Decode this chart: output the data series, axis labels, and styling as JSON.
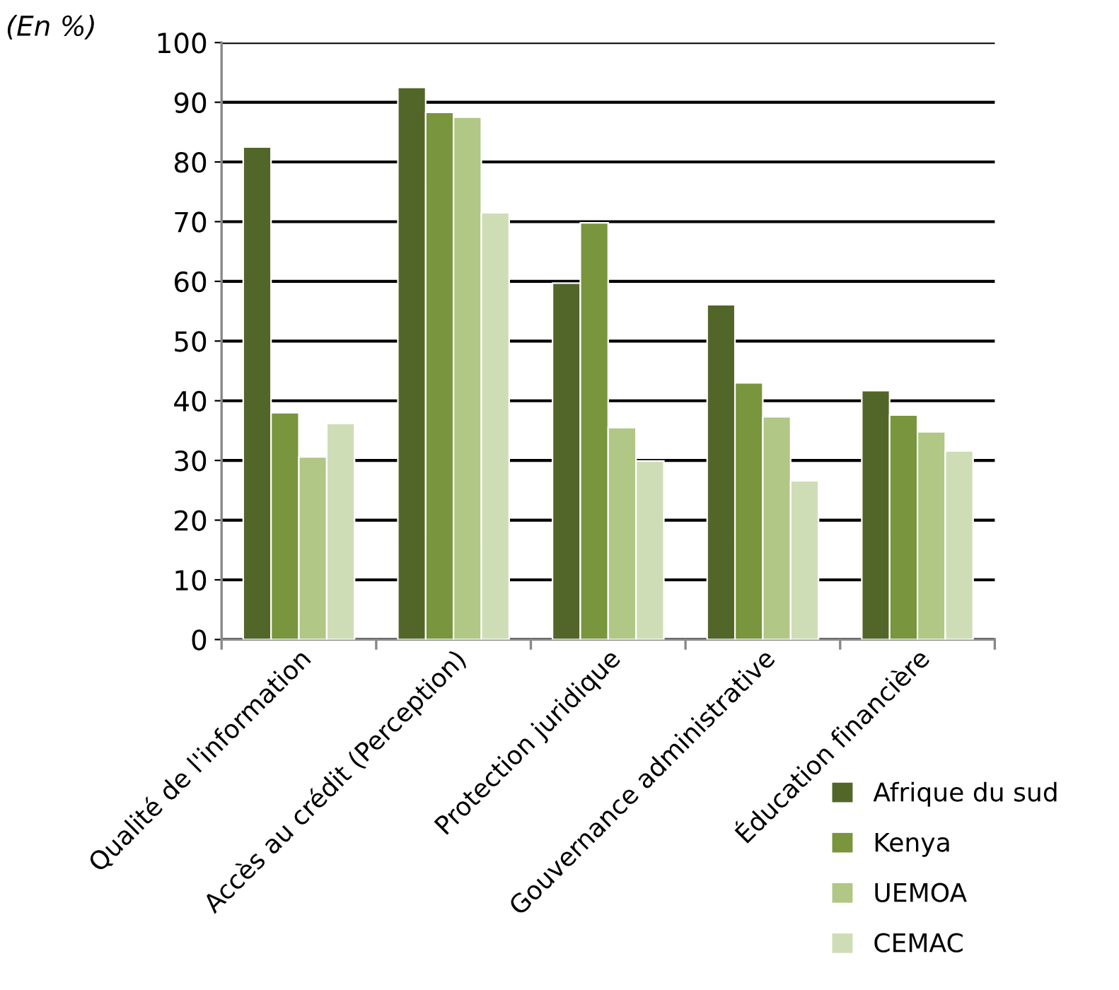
{
  "chart_data": {
    "type": "bar",
    "ylabel": "(En %)",
    "categories": [
      "Qualité de l'information",
      "Accès au crédit (Perception)",
      "Protection juridique",
      "Gouvernance administrative",
      "Éducation financière"
    ],
    "series": [
      {
        "name": "Afrique du sud",
        "color": "#526629",
        "values": [
          82.5,
          92.5,
          59.7,
          56.1,
          41.7
        ]
      },
      {
        "name": "Kenya",
        "color": "#79953d",
        "values": [
          38.0,
          88.3,
          69.8,
          43.0,
          37.6
        ]
      },
      {
        "name": "UEMOA",
        "color": "#b0c785",
        "values": [
          30.6,
          87.5,
          35.5,
          37.3,
          34.8
        ]
      },
      {
        "name": "CEMAC",
        "color": "#cfddb7",
        "values": [
          36.2,
          71.5,
          29.9,
          26.6,
          31.6
        ]
      }
    ],
    "ylim": [
      0,
      100
    ],
    "yticks": [
      0,
      10,
      20,
      30,
      40,
      50,
      60,
      70,
      80,
      90,
      100
    ],
    "grid": "y",
    "legend": "bottom right"
  }
}
